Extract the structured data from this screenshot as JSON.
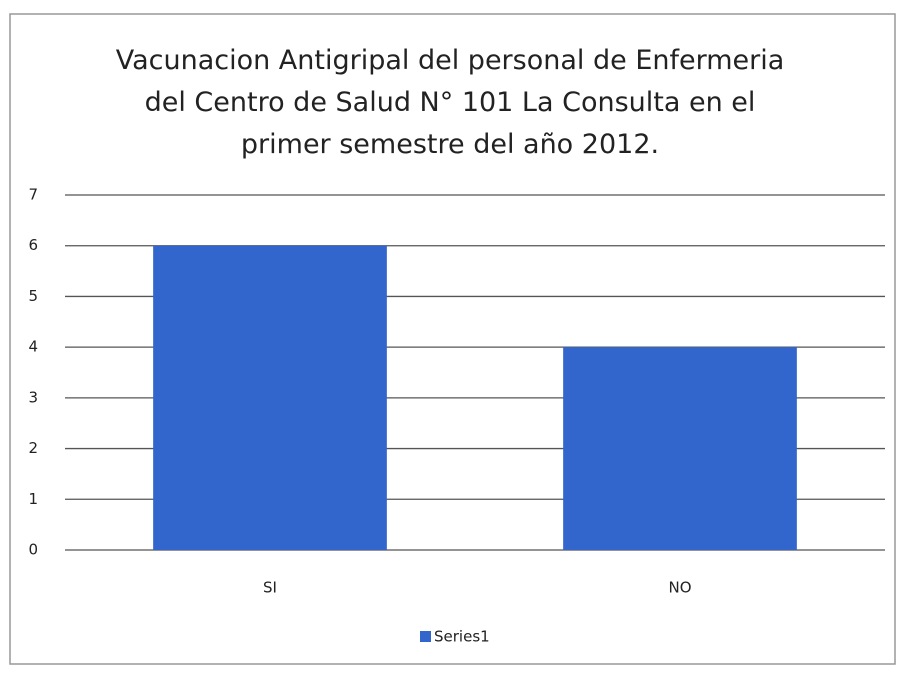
{
  "chart_data": {
    "type": "bar",
    "title": "Vacunacion Antigripal del personal de Enfermeria del Centro de Salud N° 101 La Consulta en el primer semestre del año 2012.",
    "categories": [
      "SI",
      "NO"
    ],
    "series": [
      {
        "name": "Series1",
        "color": "#3366cc",
        "values": [
          6,
          4
        ]
      }
    ],
    "ylim": [
      0,
      7
    ],
    "yticks": [
      0,
      1,
      2,
      3,
      4,
      5,
      6,
      7
    ],
    "grid": true,
    "legend": "bottom"
  }
}
